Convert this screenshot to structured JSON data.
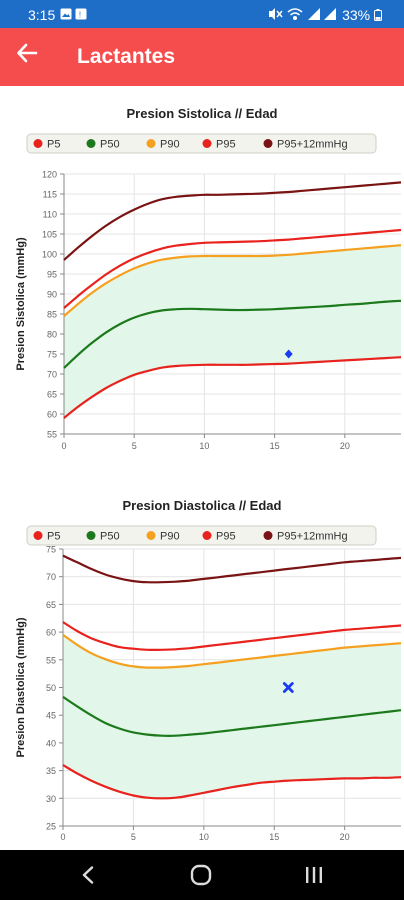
{
  "status_bar": {
    "time": "3:15",
    "battery": "33%",
    "left_icons": [
      "image-icon",
      "alert-icon"
    ],
    "right_icons": [
      "mute-icon",
      "wifi-icon",
      "signal-icon"
    ]
  },
  "app_bar": {
    "title": "Lactantes",
    "back_icon": "arrow-back-icon",
    "background": "#f54d4d"
  },
  "charts": {
    "systolic": {
      "title": "Presion Sistolica // Edad",
      "ylabel": "Presion Sistolica (mmHg)"
    },
    "diastolic": {
      "title": "Presion Diastolica // Edad",
      "ylabel": "Presion Diastolica (mmHg)"
    },
    "legend": [
      {
        "label": "P5",
        "color": "#e8231e"
      },
      {
        "label": "P50",
        "color": "#1c7a1c"
      },
      {
        "label": "P90",
        "color": "#f5a01e"
      },
      {
        "label": "P95",
        "color": "#e8231e"
      },
      {
        "label": "P95+12mmHg",
        "color": "#7a1414"
      }
    ],
    "band_fill": "#e2f7ea"
  },
  "chart_data": [
    {
      "type": "line",
      "title": "Presion Sistolica // Edad",
      "xlabel": "",
      "ylabel": "Presion Sistolica (mmHg)",
      "xlim": [
        0,
        24
      ],
      "ylim": [
        55,
        120
      ],
      "x_ticks": [
        0,
        5,
        10,
        15,
        20
      ],
      "y_ticks": [
        55,
        60,
        65,
        70,
        75,
        80,
        85,
        90,
        95,
        100,
        105,
        110,
        115,
        120
      ],
      "grid": true,
      "legend": "top",
      "x": [
        0,
        1,
        2,
        3,
        4,
        5,
        6,
        7,
        8,
        9,
        10,
        11,
        12,
        13,
        14,
        15,
        16,
        17,
        18,
        19,
        20,
        21,
        22,
        23,
        24
      ],
      "series": [
        {
          "name": "P5",
          "color": "#e8231e",
          "values": [
            59.0,
            61.8,
            64.3,
            66.5,
            68.3,
            69.8,
            70.8,
            71.6,
            72.0,
            72.2,
            72.3,
            72.3,
            72.3,
            72.3,
            72.4,
            72.5,
            72.6,
            72.8,
            73.0,
            73.2,
            73.4,
            73.6,
            73.8,
            74.0,
            74.2
          ]
        },
        {
          "name": "P50",
          "color": "#1c7a1c",
          "values": [
            71.5,
            74.8,
            77.8,
            80.4,
            82.5,
            84.1,
            85.2,
            85.9,
            86.2,
            86.3,
            86.2,
            86.1,
            86.0,
            86.0,
            86.1,
            86.2,
            86.4,
            86.6,
            86.8,
            87.0,
            87.3,
            87.5,
            87.8,
            88.1,
            88.3
          ]
        },
        {
          "name": "P90",
          "color": "#f5a01e",
          "values": [
            84.5,
            87.5,
            90.3,
            92.7,
            94.7,
            96.4,
            97.7,
            98.6,
            99.1,
            99.4,
            99.5,
            99.5,
            99.5,
            99.5,
            99.5,
            99.6,
            99.8,
            100.1,
            100.4,
            100.7,
            101.0,
            101.3,
            101.6,
            101.9,
            102.2
          ]
        },
        {
          "name": "P95",
          "color": "#e8231e",
          "values": [
            86.5,
            89.5,
            92.3,
            94.9,
            97.1,
            98.9,
            100.3,
            101.4,
            102.1,
            102.5,
            102.8,
            102.9,
            103.0,
            103.1,
            103.2,
            103.4,
            103.6,
            103.9,
            104.2,
            104.5,
            104.8,
            105.1,
            105.4,
            105.7,
            106.0
          ]
        },
        {
          "name": "P95+12mmHg",
          "color": "#7a1414",
          "values": [
            98.5,
            101.6,
            104.5,
            107.1,
            109.3,
            111.1,
            112.6,
            113.7,
            114.3,
            114.6,
            114.8,
            114.8,
            114.9,
            115.0,
            115.1,
            115.3,
            115.5,
            115.8,
            116.1,
            116.4,
            116.7,
            117.0,
            117.3,
            117.6,
            117.9
          ]
        }
      ],
      "points": [
        {
          "x": 16,
          "y": 75,
          "marker": "diamond",
          "color": "#1a3cf0"
        }
      ]
    },
    {
      "type": "line",
      "title": "Presion Diastolica // Edad",
      "xlabel": "",
      "ylabel": "Presion Diastolica (mmHg)",
      "xlim": [
        0,
        24
      ],
      "ylim": [
        25,
        75
      ],
      "x_ticks": [
        0,
        5,
        10,
        15,
        20
      ],
      "y_ticks": [
        25,
        30,
        35,
        40,
        45,
        50,
        55,
        60,
        65,
        70,
        75
      ],
      "grid": true,
      "legend": "top",
      "x": [
        0,
        1,
        2,
        3,
        4,
        5,
        6,
        7,
        8,
        9,
        10,
        11,
        12,
        13,
        14,
        15,
        16,
        17,
        18,
        19,
        20,
        21,
        22,
        23,
        24
      ],
      "series": [
        {
          "name": "P5",
          "color": "#e8231e",
          "values": [
            36.0,
            34.5,
            33.2,
            32.1,
            31.2,
            30.5,
            30.1,
            30.0,
            30.1,
            30.5,
            31.0,
            31.5,
            32.0,
            32.4,
            32.8,
            33.0,
            33.2,
            33.3,
            33.4,
            33.5,
            33.6,
            33.6,
            33.7,
            33.7,
            33.8
          ]
        },
        {
          "name": "P50",
          "color": "#1c7a1c",
          "values": [
            48.3,
            46.6,
            45.0,
            43.6,
            42.6,
            41.9,
            41.5,
            41.3,
            41.3,
            41.5,
            41.7,
            42.0,
            42.3,
            42.6,
            42.9,
            43.2,
            43.5,
            43.8,
            44.1,
            44.4,
            44.7,
            45.0,
            45.3,
            45.6,
            45.9
          ]
        },
        {
          "name": "P90",
          "color": "#f5a01e",
          "values": [
            59.5,
            57.7,
            56.2,
            55.1,
            54.3,
            53.8,
            53.6,
            53.6,
            53.7,
            53.9,
            54.2,
            54.5,
            54.8,
            55.1,
            55.4,
            55.7,
            56.0,
            56.3,
            56.6,
            56.9,
            57.2,
            57.4,
            57.6,
            57.8,
            58.0
          ]
        },
        {
          "name": "P95",
          "color": "#e8231e",
          "values": [
            61.8,
            60.2,
            58.9,
            58.0,
            57.3,
            57.0,
            56.8,
            56.8,
            56.9,
            57.1,
            57.4,
            57.7,
            58.0,
            58.3,
            58.6,
            58.9,
            59.2,
            59.5,
            59.8,
            60.1,
            60.4,
            60.6,
            60.8,
            61.0,
            61.2
          ]
        },
        {
          "name": "P95+12mmHg",
          "color": "#7a1414",
          "values": [
            73.8,
            72.6,
            71.4,
            70.4,
            69.7,
            69.2,
            69.0,
            69.0,
            69.1,
            69.3,
            69.6,
            69.9,
            70.2,
            70.5,
            70.8,
            71.1,
            71.4,
            71.7,
            72.0,
            72.3,
            72.6,
            72.8,
            73.0,
            73.2,
            73.4
          ]
        }
      ],
      "points": [
        {
          "x": 16,
          "y": 50,
          "marker": "x",
          "color": "#1a3cf0"
        }
      ]
    }
  ]
}
